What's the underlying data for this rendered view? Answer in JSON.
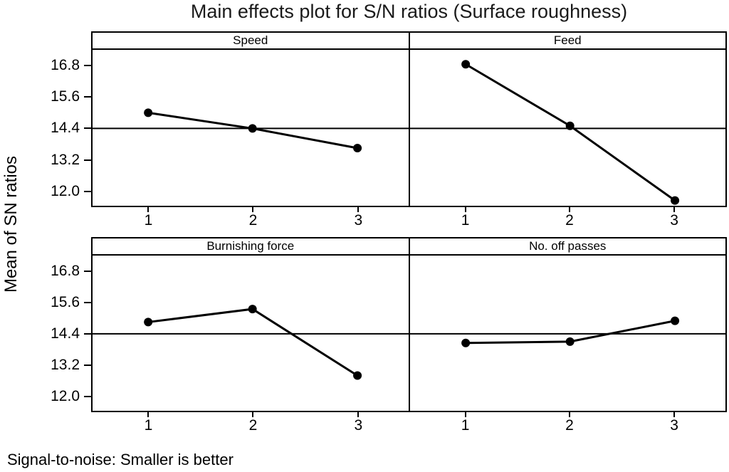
{
  "title": "Main effects plot for S/N ratios (Surface roughness)",
  "y_axis_title": "Mean of SN ratios",
  "footer": "Signal-to-noise: Smaller is better",
  "colors": {
    "foreground": "#000000",
    "background": "#ffffff",
    "reference_line": "#000000"
  },
  "chart_data": {
    "type": "line",
    "subtype": "main-effects-plot-2x2-panels",
    "title": "Main effects plot for S/N ratios (Surface roughness)",
    "ylabel": "Mean of SN ratios",
    "x": [
      1,
      2,
      3
    ],
    "x_ticklabels": [
      "1",
      "2",
      "3"
    ],
    "yticks": [
      16.8,
      15.6,
      14.4,
      13.2,
      12.0
    ],
    "ytick_labels": [
      "16.8",
      "15.6",
      "14.4",
      "13.2",
      "12.0"
    ],
    "ylim": [
      11.45,
      17.4
    ],
    "reference_line_value": 14.4,
    "grid": false,
    "legend": null,
    "panels": [
      {
        "label": "Speed",
        "values": [
          15.0,
          14.4,
          13.65
        ]
      },
      {
        "label": "Feed",
        "values": [
          16.85,
          14.5,
          11.65
        ]
      },
      {
        "label": "Burnishing force",
        "values": [
          14.85,
          15.35,
          12.8
        ]
      },
      {
        "label": "No. off passes",
        "values": [
          14.05,
          14.1,
          14.9
        ]
      }
    ],
    "annotation": "Signal-to-noise: Smaller is better"
  }
}
